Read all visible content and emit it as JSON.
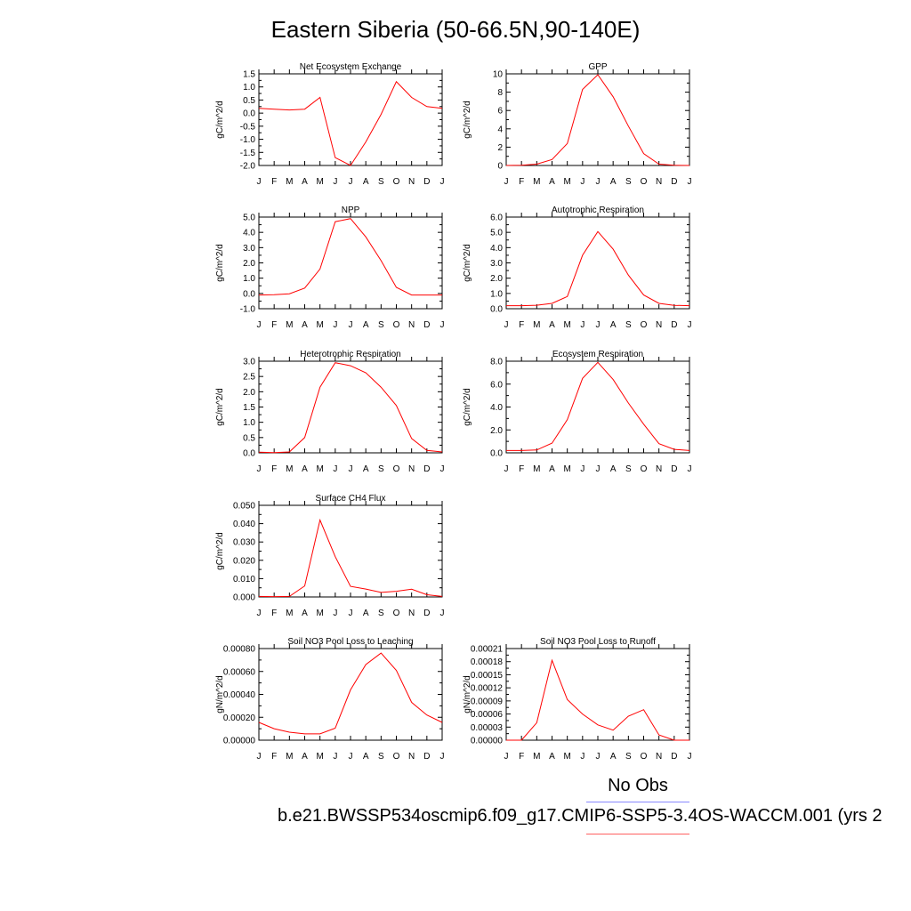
{
  "title": "Eastern Siberia (50-66.5N,90-140E)",
  "legend": {
    "obs_label": "No Obs",
    "model_label": "b.e21.BWSSP534oscmip6.f09_g17.CMIP6-SSP5-3.4OS-WACCM.001 (yrs 2",
    "obs_color": "#8888ff",
    "model_color": "#ff0000"
  },
  "chart_data": [
    {
      "type": "line",
      "title": "Net Ecosystem Exchange",
      "ylabel": "gC/m^2/d",
      "x": [
        "J",
        "F",
        "M",
        "A",
        "M",
        "J",
        "J",
        "A",
        "S",
        "O",
        "N",
        "D",
        "J"
      ],
      "yticks": [
        "1.5",
        "1.0",
        "0.5",
        "0.0",
        "-0.5",
        "-1.0",
        "-1.5",
        "-2.0"
      ],
      "ylim": [
        -2.0,
        1.5
      ],
      "series": [
        {
          "values": [
            0.18,
            0.15,
            0.12,
            0.15,
            0.6,
            -1.7,
            -2.0,
            -1.1,
            -0.05,
            1.2,
            0.6,
            0.25,
            0.18
          ],
          "color": "#ff0000"
        }
      ]
    },
    {
      "type": "line",
      "title": "GPP",
      "ylabel": "gC/m^2/d",
      "x": [
        "J",
        "F",
        "M",
        "A",
        "M",
        "J",
        "J",
        "A",
        "S",
        "O",
        "N",
        "D",
        "J"
      ],
      "yticks": [
        "10",
        "8",
        "6",
        "4",
        "2",
        "0"
      ],
      "ylim": [
        0,
        10
      ],
      "series": [
        {
          "values": [
            0.0,
            0.02,
            0.15,
            0.65,
            2.4,
            8.3,
            9.9,
            7.5,
            4.3,
            1.3,
            0.15,
            0.02,
            0.0
          ],
          "color": "#ff0000"
        }
      ]
    },
    {
      "type": "line",
      "title": "NPP",
      "ylabel": "gC/m^2/d",
      "x": [
        "J",
        "F",
        "M",
        "A",
        "M",
        "J",
        "J",
        "A",
        "S",
        "O",
        "N",
        "D",
        "J"
      ],
      "yticks": [
        "5.0",
        "4.0",
        "3.0",
        "2.0",
        "1.0",
        "0.0",
        "-1.0"
      ],
      "ylim": [
        -1.0,
        5.0
      ],
      "series": [
        {
          "values": [
            -0.1,
            -0.08,
            -0.02,
            0.35,
            1.6,
            4.7,
            4.9,
            3.7,
            2.15,
            0.4,
            -0.1,
            -0.1,
            -0.1
          ],
          "color": "#ff0000"
        }
      ]
    },
    {
      "type": "line",
      "title": "Autotrophic Respiration",
      "ylabel": "gC/m^2/d",
      "x": [
        "J",
        "F",
        "M",
        "A",
        "M",
        "J",
        "J",
        "A",
        "S",
        "O",
        "N",
        "D",
        "J"
      ],
      "yticks": [
        "6.0",
        "5.0",
        "4.0",
        "3.0",
        "2.0",
        "1.0",
        "0.0"
      ],
      "ylim": [
        0.0,
        6.0
      ],
      "series": [
        {
          "values": [
            0.2,
            0.2,
            0.23,
            0.35,
            0.8,
            3.5,
            5.05,
            3.9,
            2.2,
            0.9,
            0.35,
            0.22,
            0.2
          ],
          "color": "#ff0000"
        }
      ]
    },
    {
      "type": "line",
      "title": "Heterotrophic Respiration",
      "ylabel": "gC/m^2/d",
      "x": [
        "J",
        "F",
        "M",
        "A",
        "M",
        "J",
        "J",
        "A",
        "S",
        "O",
        "N",
        "D",
        "J"
      ],
      "yticks": [
        "3.0",
        "2.5",
        "2.0",
        "1.5",
        "1.0",
        "0.5",
        "0.0"
      ],
      "ylim": [
        0.0,
        3.0
      ],
      "series": [
        {
          "values": [
            0.02,
            0.01,
            0.03,
            0.5,
            2.15,
            2.95,
            2.85,
            2.62,
            2.15,
            1.55,
            0.47,
            0.08,
            0.03
          ],
          "color": "#ff0000"
        }
      ]
    },
    {
      "type": "line",
      "title": "Ecosystem Respiration",
      "ylabel": "gC/m^2/d",
      "x": [
        "J",
        "F",
        "M",
        "A",
        "M",
        "J",
        "J",
        "A",
        "S",
        "O",
        "N",
        "D",
        "J"
      ],
      "yticks": [
        "8.0",
        "6.0",
        "4.0",
        "2.0",
        "0.0"
      ],
      "ylim": [
        0.0,
        8.0
      ],
      "series": [
        {
          "values": [
            0.2,
            0.2,
            0.25,
            0.85,
            2.9,
            6.5,
            7.9,
            6.4,
            4.35,
            2.5,
            0.8,
            0.3,
            0.2
          ],
          "color": "#ff0000"
        }
      ]
    },
    {
      "type": "line",
      "title": "Surface CH4 Flux",
      "ylabel": "gC/m^2/d",
      "x": [
        "J",
        "F",
        "M",
        "A",
        "M",
        "J",
        "J",
        "A",
        "S",
        "O",
        "N",
        "D",
        "J"
      ],
      "yticks": [
        "0.050",
        "0.040",
        "0.030",
        "0.020",
        "0.010",
        "0.000"
      ],
      "ylim": [
        0.0,
        0.05
      ],
      "series": [
        {
          "values": [
            0.0003,
            0.0002,
            0.0003,
            0.006,
            0.042,
            0.022,
            0.0058,
            0.0043,
            0.0025,
            0.0031,
            0.0042,
            0.0012,
            0.0003
          ],
          "color": "#ff0000"
        }
      ]
    },
    {
      "type": "line",
      "title": "Soil NO3 Pool Loss to Leaching",
      "ylabel": "gN/m^2/d",
      "x": [
        "J",
        "F",
        "M",
        "A",
        "M",
        "J",
        "J",
        "A",
        "S",
        "O",
        "N",
        "D",
        "J"
      ],
      "yticks": [
        "0.00080",
        "0.00060",
        "0.00040",
        "0.00020",
        "0.00000"
      ],
      "ylim": [
        0.0,
        0.0008
      ],
      "series": [
        {
          "values": [
            0.000155,
            0.0001,
            7e-05,
            5.5e-05,
            5.5e-05,
            0.000105,
            0.00044,
            0.00066,
            0.00076,
            0.00061,
            0.00033,
            0.00022,
            0.000155
          ],
          "color": "#ff0000"
        }
      ]
    },
    {
      "type": "line",
      "title": "Soil NO3 Pool Loss to Runoff",
      "ylabel": "gN/m^2/d",
      "x": [
        "J",
        "F",
        "M",
        "A",
        "M",
        "J",
        "J",
        "A",
        "S",
        "O",
        "N",
        "D",
        "J"
      ],
      "yticks": [
        "0.00021",
        "0.00018",
        "0.00015",
        "0.00012",
        "0.00009",
        "0.00006",
        "0.00003",
        "0.00000"
      ],
      "ylim": [
        0.0,
        0.00021
      ],
      "series": [
        {
          "values": [
            0.0,
            0.0,
            4e-05,
            0.000183,
            9.3e-05,
            6e-05,
            3.5e-05,
            2.3e-05,
            5.5e-05,
            7e-05,
            1.2e-05,
            0.0,
            0.0
          ],
          "color": "#ff0000"
        }
      ]
    }
  ]
}
